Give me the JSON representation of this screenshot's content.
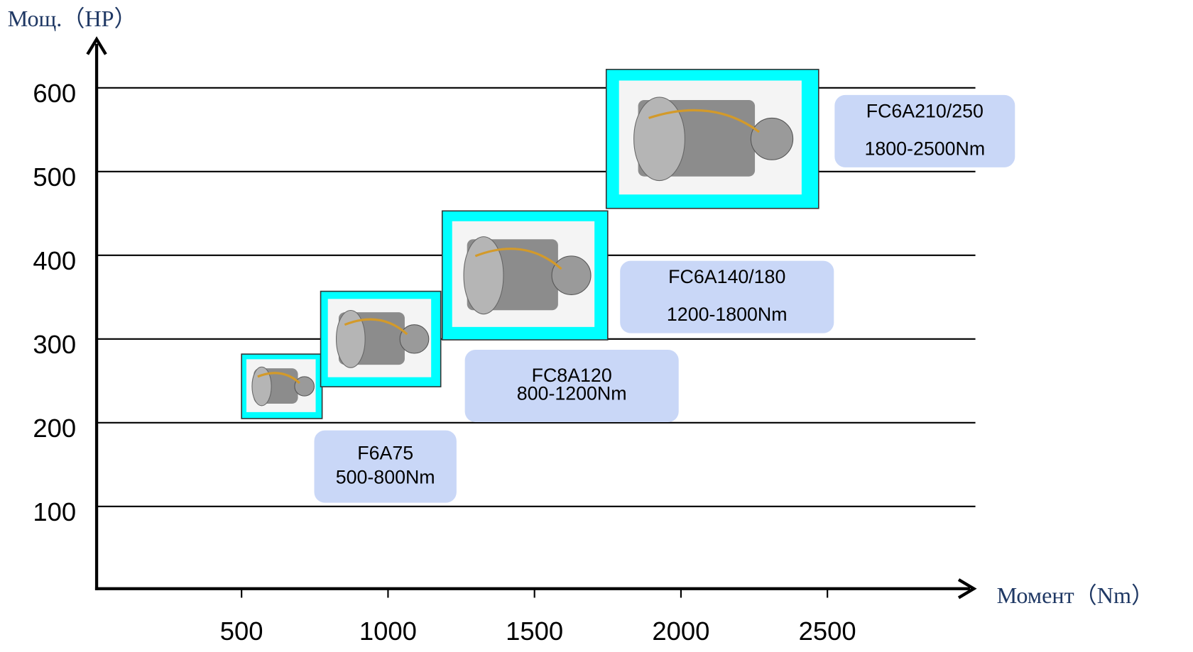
{
  "chart_data": {
    "type": "range",
    "x_label": "Момент（Nm）",
    "y_label": "Мощ.（HP）",
    "xlim": [
      0,
      3000
    ],
    "xticks": [
      500,
      1000,
      1500,
      2000,
      2500
    ],
    "ylim": [
      0,
      650
    ],
    "yticks": [
      100,
      200,
      300,
      400,
      500,
      600
    ],
    "grid": true,
    "box_color": "#00ffff",
    "label_color": "#c9d7f7",
    "items": [
      {
        "name": "F6A75",
        "range": "500-800Nm",
        "torque": [
          500,
          775
        ],
        "power": [
          205,
          282
        ]
      },
      {
        "name": "FC8A120",
        "range": "800-1200Nm",
        "torque": [
          770,
          1180
        ],
        "power": [
          243,
          357
        ]
      },
      {
        "name": "FC6A140/180",
        "range": "1200-1800Nm",
        "torque": [
          1185,
          1750
        ],
        "power": [
          299,
          453
        ]
      },
      {
        "name": "FC6A210/250",
        "range": "1800-2500Nm",
        "torque": [
          1745,
          2470
        ],
        "power": [
          456,
          622
        ]
      }
    ]
  }
}
